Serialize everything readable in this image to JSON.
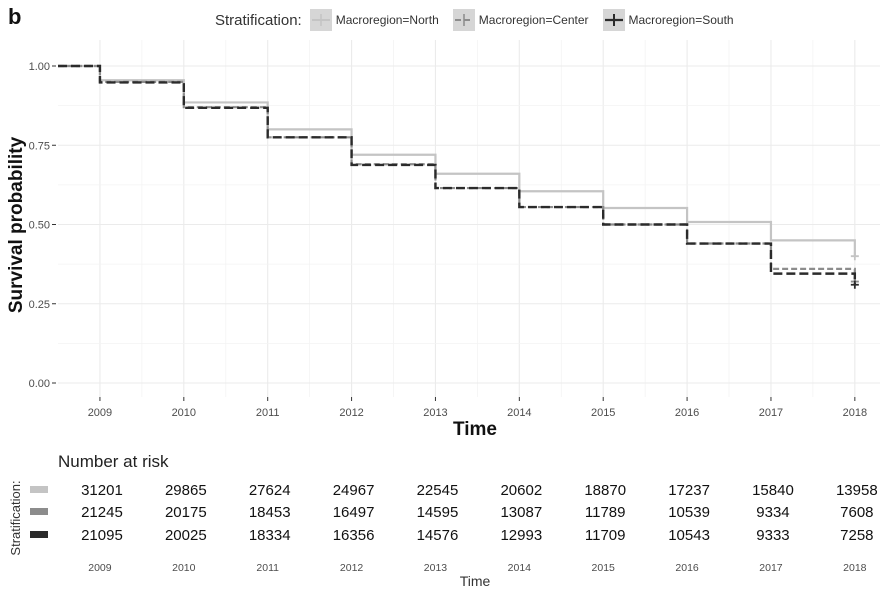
{
  "panel_letter": "b",
  "legend": {
    "title": "Stratification:",
    "items": [
      {
        "label": "Macroregion=North",
        "color": "#c4c4c4",
        "dash": ""
      },
      {
        "label": "Macroregion=Center",
        "color": "#8c8c8c",
        "dash": "6,3"
      },
      {
        "label": "Macroregion=South",
        "color": "#2b2b2b",
        "dash": "9,4"
      }
    ]
  },
  "chart_data": {
    "type": "line",
    "title": "",
    "xlabel": "Time",
    "ylabel": "Survival probability",
    "xlim": [
      2008.5,
      2018.3
    ],
    "ylim": [
      0,
      1
    ],
    "x_ticks": [
      2009,
      2010,
      2011,
      2012,
      2013,
      2014,
      2015,
      2016,
      2017,
      2018
    ],
    "y_ticks": [
      "0.00",
      "0.25",
      "0.50",
      "0.75",
      "1.00"
    ],
    "y_tick_values": [
      0,
      0.25,
      0.5,
      0.75,
      1.0
    ],
    "grid": true,
    "series": [
      {
        "name": "Macroregion=North",
        "color": "#c4c4c4",
        "dash": "",
        "x": [
          2008.5,
          2009,
          2010,
          2011,
          2012,
          2013,
          2014,
          2015,
          2016,
          2017,
          2018
        ],
        "y": [
          1.0,
          0.955,
          0.885,
          0.8,
          0.72,
          0.66,
          0.605,
          0.552,
          0.508,
          0.45,
          0.4
        ]
      },
      {
        "name": "Macroregion=Center",
        "color": "#8c8c8c",
        "dash": "6,3",
        "x": [
          2008.5,
          2009,
          2010,
          2011,
          2012,
          2013,
          2014,
          2015,
          2016,
          2017,
          2018
        ],
        "y": [
          1.0,
          0.95,
          0.87,
          0.775,
          0.69,
          0.615,
          0.555,
          0.5,
          0.44,
          0.36,
          0.32
        ]
      },
      {
        "name": "Macroregion=South",
        "color": "#2b2b2b",
        "dash": "9,4",
        "x": [
          2008.5,
          2009,
          2010,
          2011,
          2012,
          2013,
          2014,
          2015,
          2016,
          2017,
          2018
        ],
        "y": [
          1.0,
          0.948,
          0.868,
          0.775,
          0.688,
          0.615,
          0.555,
          0.5,
          0.44,
          0.345,
          0.31
        ]
      }
    ]
  },
  "risk_table": {
    "title": "Number at risk",
    "ylabel": "Stratification:",
    "xlabel": "Time",
    "years": [
      "2009",
      "2010",
      "2011",
      "2012",
      "2013",
      "2014",
      "2015",
      "2016",
      "2017",
      "2018"
    ],
    "rows": [
      {
        "color": "#c4c4c4",
        "values": [
          "31201",
          "29865",
          "27624",
          "24967",
          "22545",
          "20602",
          "18870",
          "17237",
          "15840",
          "13958"
        ]
      },
      {
        "color": "#8c8c8c",
        "values": [
          "21245",
          "20175",
          "18453",
          "16497",
          "14595",
          "13087",
          "11789",
          "10539",
          "9334",
          "7608"
        ]
      },
      {
        "color": "#2b2b2b",
        "values": [
          "21095",
          "20025",
          "18334",
          "16356",
          "14576",
          "12993",
          "11709",
          "10543",
          "9333",
          "7258"
        ]
      }
    ]
  }
}
